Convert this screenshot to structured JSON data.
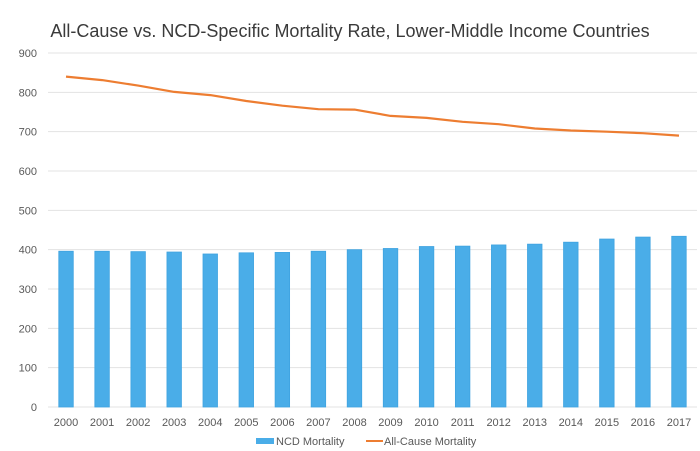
{
  "chart_data": {
    "type": "bar+line",
    "title": "All-Cause vs. NCD-Specific Mortality Rate, Lower-Middle Income Countries",
    "xlabel": "",
    "ylabel": "",
    "ylim": [
      0,
      900
    ],
    "yticks": [
      0,
      100,
      200,
      300,
      400,
      500,
      600,
      700,
      800,
      900
    ],
    "grid": true,
    "legend_position": "bottom",
    "categories": [
      "2000",
      "2001",
      "2002",
      "2003",
      "2004",
      "2005",
      "2006",
      "2007",
      "2008",
      "2009",
      "2010",
      "2011",
      "2012",
      "2013",
      "2014",
      "2015",
      "2016",
      "2017"
    ],
    "series": [
      {
        "name": "NCD Mortality",
        "type": "bar",
        "color": "#4AADE8",
        "values": [
          396,
          396,
          395,
          394,
          389,
          392,
          393,
          396,
          400,
          403,
          408,
          409,
          412,
          414,
          419,
          427,
          432,
          434
        ]
      },
      {
        "name": "All-Cause Mortality",
        "type": "line",
        "color": "#ED7D31",
        "values": [
          840,
          831,
          817,
          801,
          793,
          778,
          766,
          757,
          756,
          740,
          735,
          725,
          719,
          708,
          703,
          700,
          696,
          690
        ]
      }
    ]
  }
}
